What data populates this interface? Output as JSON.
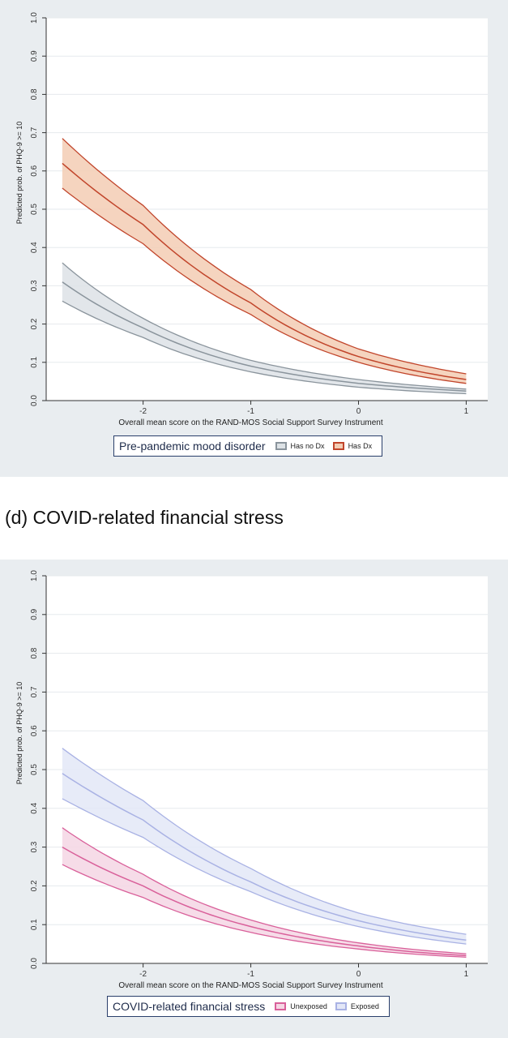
{
  "panel_d_heading": "(d) COVID-related financial stress",
  "chart_data": [
    {
      "type": "line",
      "title": "",
      "xlabel": "Overall mean score on the RAND-MOS Social Support Survey Instrument",
      "ylabel": "Predicted prob. of PHQ-9 >= 10",
      "xlim": [
        -2.9,
        1.2
      ],
      "ylim": [
        0,
        1.0
      ],
      "x_ticks": [
        -2,
        -1,
        0,
        1
      ],
      "x_tick_labels": [
        "-2",
        "-1",
        "0",
        "1"
      ],
      "y_ticks": [
        0,
        0.1,
        0.2,
        0.3,
        0.4,
        0.5,
        0.6,
        0.7,
        0.8,
        0.9,
        1.0
      ],
      "y_tick_labels": [
        "0.0",
        "0.1",
        "0.2",
        "0.3",
        "0.4",
        "0.5",
        "0.6",
        "0.7",
        "0.8",
        "0.9",
        "1.0"
      ],
      "grid": true,
      "legend": {
        "title": "Pre-pandemic mood disorder",
        "position": "bottom"
      },
      "x": [
        -2.75,
        -2.0,
        -1.0,
        0.0,
        1.0
      ],
      "series": [
        {
          "name": "Has no Dx",
          "color": "#8a949c",
          "fill": "#dde2e6",
          "values": [
            0.31,
            0.19,
            0.09,
            0.045,
            0.025
          ],
          "lower": [
            0.26,
            0.165,
            0.075,
            0.035,
            0.018
          ],
          "upper": [
            0.36,
            0.215,
            0.105,
            0.055,
            0.03
          ]
        },
        {
          "name": "Has Dx",
          "color": "#c1452b",
          "fill": "#f3cdb4",
          "values": [
            0.62,
            0.46,
            0.255,
            0.115,
            0.055
          ],
          "lower": [
            0.555,
            0.41,
            0.225,
            0.1,
            0.045
          ],
          "upper": [
            0.685,
            0.51,
            0.29,
            0.135,
            0.07
          ]
        }
      ]
    },
    {
      "type": "line",
      "title": "",
      "xlabel": "Overall mean score on the RAND-MOS Social Support Survey Instrument",
      "ylabel": "Predicted prob. of PHQ-9 >= 10",
      "xlim": [
        -2.9,
        1.2
      ],
      "ylim": [
        0,
        1.0
      ],
      "x_ticks": [
        -2,
        -1,
        0,
        1
      ],
      "x_tick_labels": [
        "-2",
        "-1",
        "0",
        "1"
      ],
      "y_ticks": [
        0,
        0.1,
        0.2,
        0.3,
        0.4,
        0.5,
        0.6,
        0.7,
        0.8,
        0.9,
        1.0
      ],
      "y_tick_labels": [
        "0.0",
        "0.1",
        "0.2",
        "0.3",
        "0.4",
        "0.5",
        "0.6",
        "0.7",
        "0.8",
        "0.9",
        "1.0"
      ],
      "grid": true,
      "legend": {
        "title": "COVID-related financial stress",
        "position": "bottom"
      },
      "x": [
        -2.75,
        -2.0,
        -1.0,
        0.0,
        1.0
      ],
      "series": [
        {
          "name": "Unexposed",
          "color": "#d9609a",
          "fill": "#f5d6e4",
          "values": [
            0.3,
            0.2,
            0.095,
            0.045,
            0.02
          ],
          "lower": [
            0.255,
            0.17,
            0.08,
            0.037,
            0.016
          ],
          "upper": [
            0.35,
            0.23,
            0.112,
            0.053,
            0.025
          ]
        },
        {
          "name": "Exposed",
          "color": "#a9b2e4",
          "fill": "#e3e7f7",
          "values": [
            0.49,
            0.37,
            0.21,
            0.11,
            0.06
          ],
          "lower": [
            0.425,
            0.325,
            0.185,
            0.095,
            0.05
          ],
          "upper": [
            0.555,
            0.42,
            0.245,
            0.13,
            0.075
          ]
        }
      ]
    }
  ]
}
